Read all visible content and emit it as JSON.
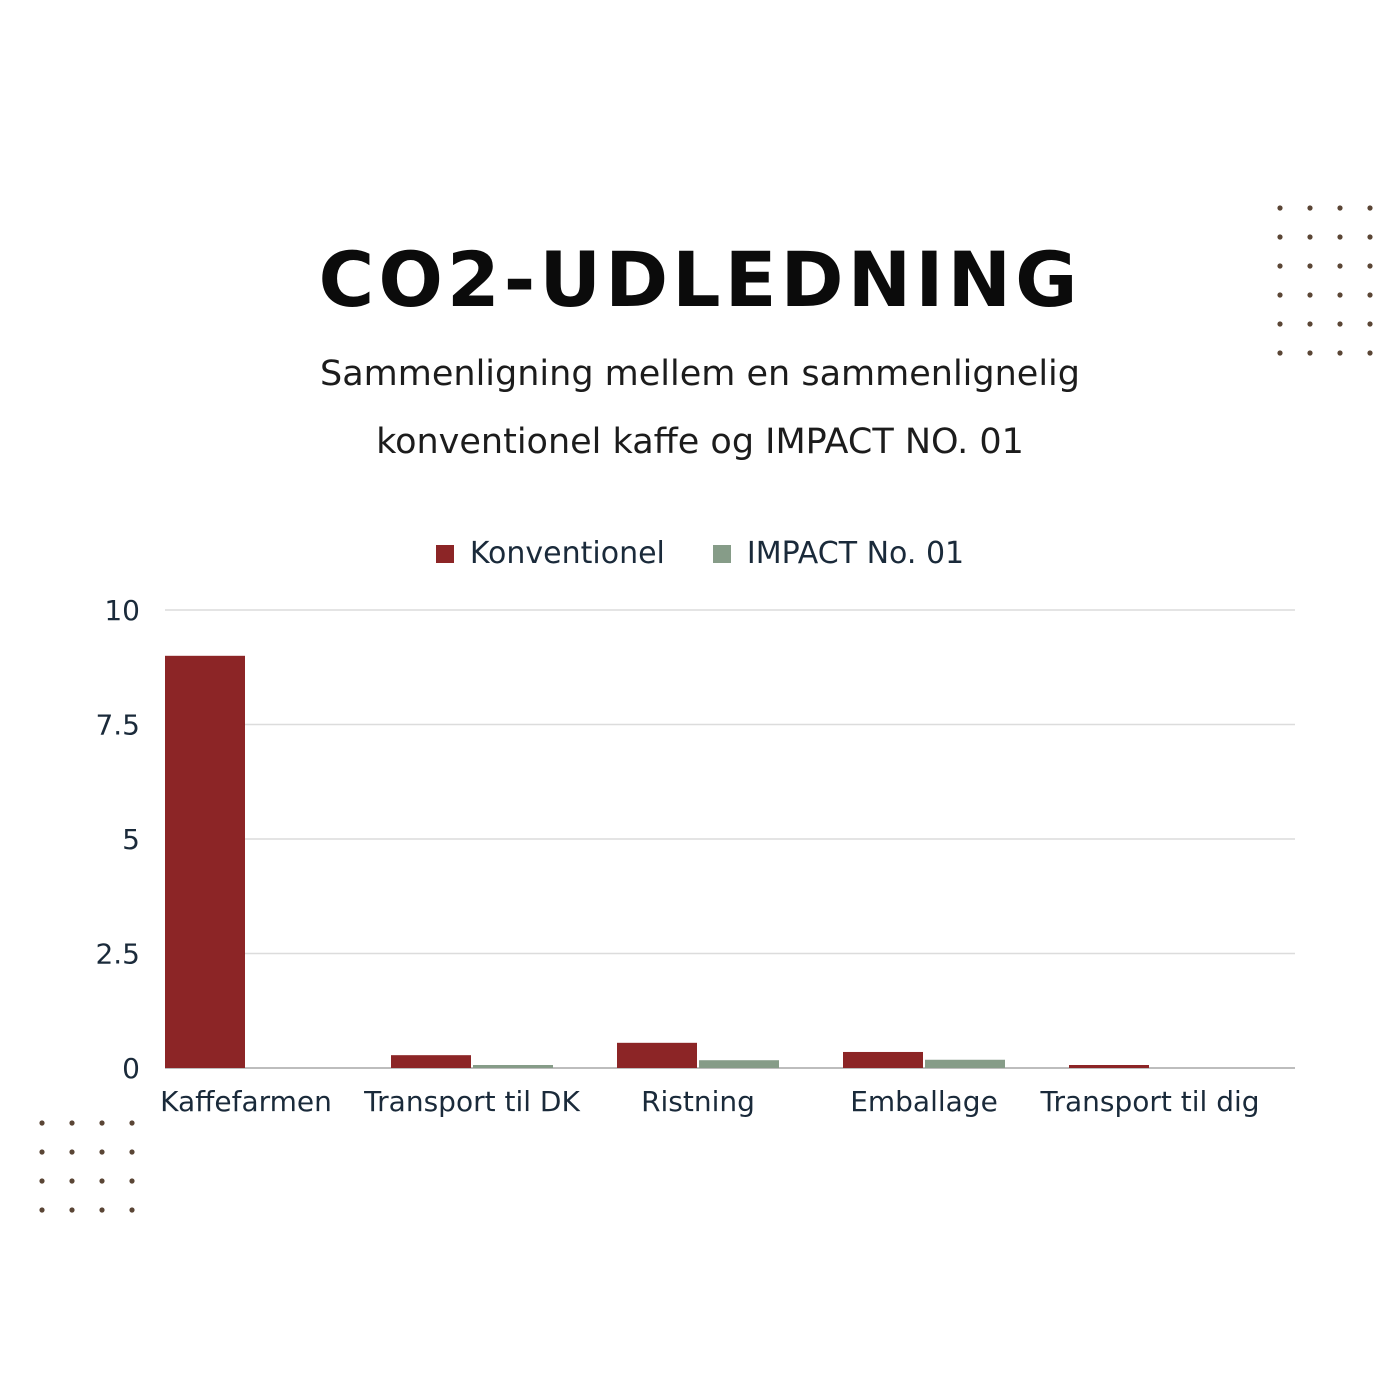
{
  "header": {
    "title": "CO2-UDLEDNING",
    "subtitle_line1": "Sammenligning mellem en sammenlignelig",
    "subtitle_line2": "konventionel kaffe og IMPACT NO. 01"
  },
  "chart_data": {
    "type": "bar",
    "categories": [
      "Kaffefarmen",
      "Transport til DK",
      "Ristning",
      "Emballage",
      "Transport til dig"
    ],
    "series": [
      {
        "name": "Konventionel",
        "color": "#8c2526",
        "values": [
          9.0,
          0.28,
          0.55,
          0.35,
          0.05
        ]
      },
      {
        "name": "IMPACT No. 01",
        "color": "#869c88",
        "values": [
          0.0,
          0.06,
          0.17,
          0.18,
          0.0
        ]
      }
    ],
    "yticks": [
      0,
      2.5,
      5,
      7.5,
      10
    ],
    "ytick_labels": [
      "0",
      "2.5",
      "5",
      "7.5",
      "10"
    ],
    "ylim": [
      0,
      10
    ],
    "grid": true,
    "legend": "top-center"
  },
  "colors": {
    "axis_text": "#1a2a3a",
    "grid": "#dcdcdc",
    "dot": "#5a4535"
  }
}
